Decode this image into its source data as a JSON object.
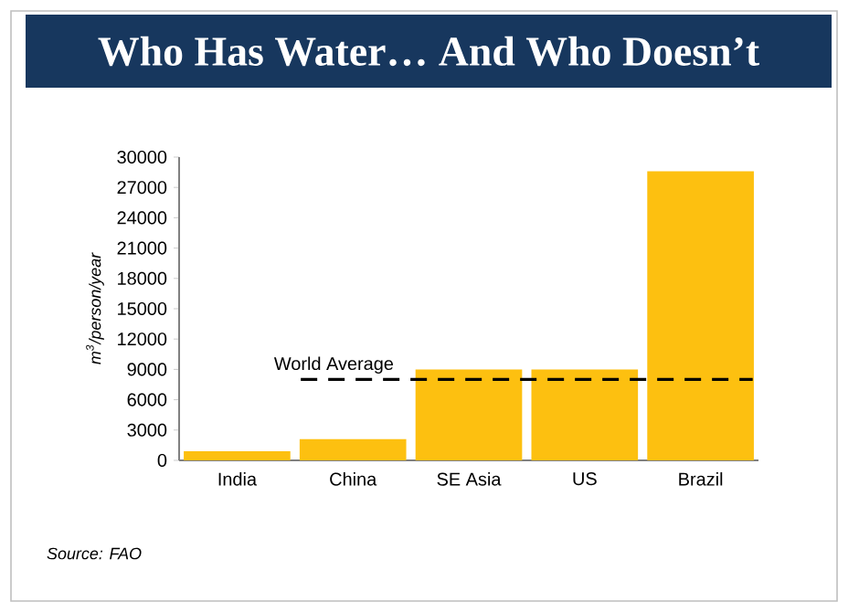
{
  "chart_data": {
    "type": "bar",
    "title": "Who Has Water… And Who Doesn’t",
    "ylabel": "m$^{3}$/person/year",
    "categories": [
      "India",
      "China",
      "SE Asia",
      "US",
      "Brazil"
    ],
    "values": [
      900,
      2100,
      9000,
      9000,
      28600
    ],
    "color": "#fdc010",
    "ylim": [
      0,
      30000
    ],
    "yticks": [
      0,
      3000,
      6000,
      9000,
      12000,
      15000,
      18000,
      21000,
      24000,
      27000,
      30000
    ],
    "ref_lines": [
      {
        "axis": "y",
        "value": 8000,
        "label": "World Average",
        "color": "#000000",
        "line_style": "dashed"
      }
    ],
    "annotations": [
      "Source: FAO"
    ]
  }
}
